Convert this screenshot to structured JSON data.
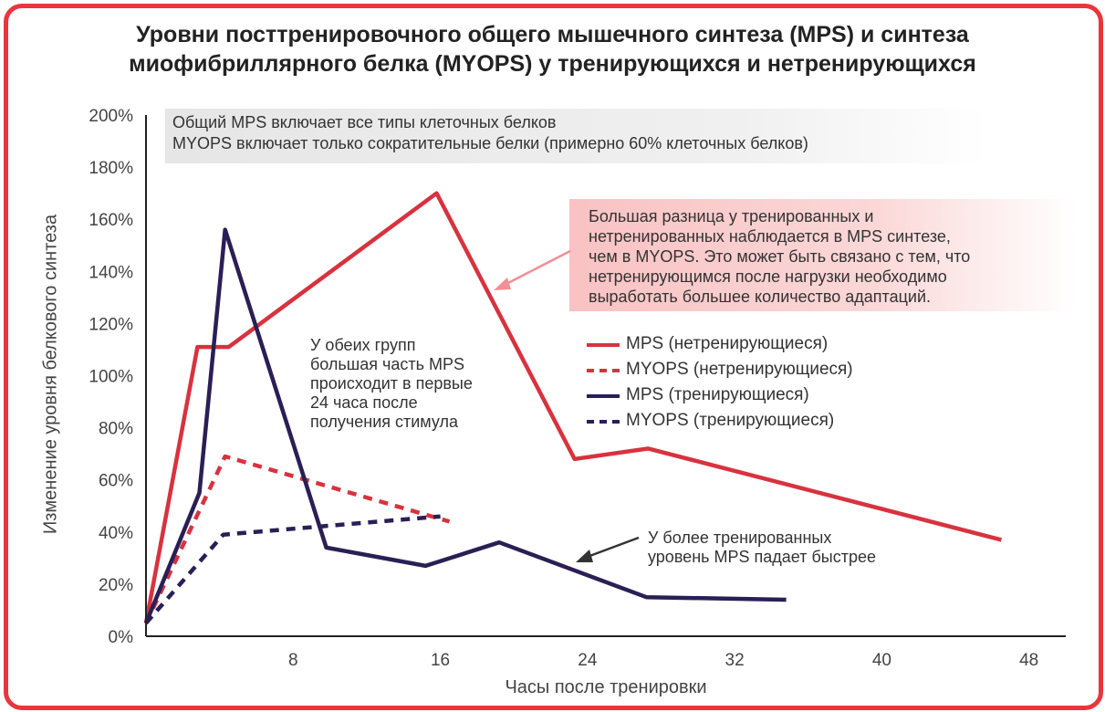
{
  "chart_data": {
    "type": "line",
    "title_line1": "Уровни посттренировочного общего мышечного синтеза (MPS) и синтеза",
    "title_line2": "миофибриллярного белка (MYOPS) у тренирующихся и нетренирующихся",
    "xlabel": "Часы после тренировки",
    "ylabel": "Изменение уровня белкового синтеза",
    "xlim": [
      0,
      50
    ],
    "ylim": [
      0,
      200
    ],
    "x_ticks": [
      8,
      16,
      24,
      32,
      40,
      48
    ],
    "x_tick_labels": [
      "8",
      "16",
      "24",
      "32",
      "40",
      "48"
    ],
    "y_ticks": [
      0,
      20,
      40,
      60,
      80,
      100,
      120,
      140,
      160,
      180,
      200
    ],
    "y_tick_labels": [
      "0%",
      "20%",
      "40%",
      "60%",
      "80%",
      "100%",
      "120%",
      "140%",
      "160%",
      "180%",
      "200%"
    ],
    "series": [
      {
        "name": "MPS (нетренирующиеся)",
        "color": "#d8323f",
        "style": "solid",
        "x": [
          0,
          2.8,
          4.5,
          15.8,
          23.3,
          27.3,
          46.5
        ],
        "y": [
          5,
          111,
          111,
          170,
          68,
          72,
          37
        ]
      },
      {
        "name": "MYOPS (нетренирующиеся)",
        "color": "#d8323f",
        "style": "dashed",
        "x": [
          0,
          4.3,
          16.5
        ],
        "y": [
          5,
          69,
          44
        ]
      },
      {
        "name": "MPS (тренирующиеся)",
        "color": "#2a1f55",
        "style": "solid",
        "x": [
          0,
          2.9,
          4.3,
          9.8,
          15.2,
          19.2,
          27.2,
          34.8
        ],
        "y": [
          5,
          55,
          156,
          34,
          27,
          36,
          15,
          14
        ]
      },
      {
        "name": "MYOPS (тренирующиеся)",
        "color": "#2a1f55",
        "style": "dashed",
        "x": [
          0,
          4.2,
          16.0
        ],
        "y": [
          5,
          39,
          46
        ]
      }
    ],
    "annotations": {
      "gray_box": [
        "Общий MPS включает все типы клеточных белков",
        "MYOPS включает только сократительные белки (примерно 60% клеточных белков)"
      ],
      "pink_box": [
        "Большая разница у тренированных и",
        "нетренированных наблюдается в MPS синтезе,",
        "чем в MYOPS. Это может быть связано с тем, что",
        "нетренирующимся после нагрузки необходимо",
        "выработать большее количество адаптаций."
      ],
      "middle_note": [
        "У обеих групп",
        "большая часть MPS",
        "происходит в первые",
        "24 часа после",
        "получения стимула"
      ],
      "bottom_note": [
        "У более тренированных",
        "уровень MPS падает быстрее"
      ]
    }
  }
}
